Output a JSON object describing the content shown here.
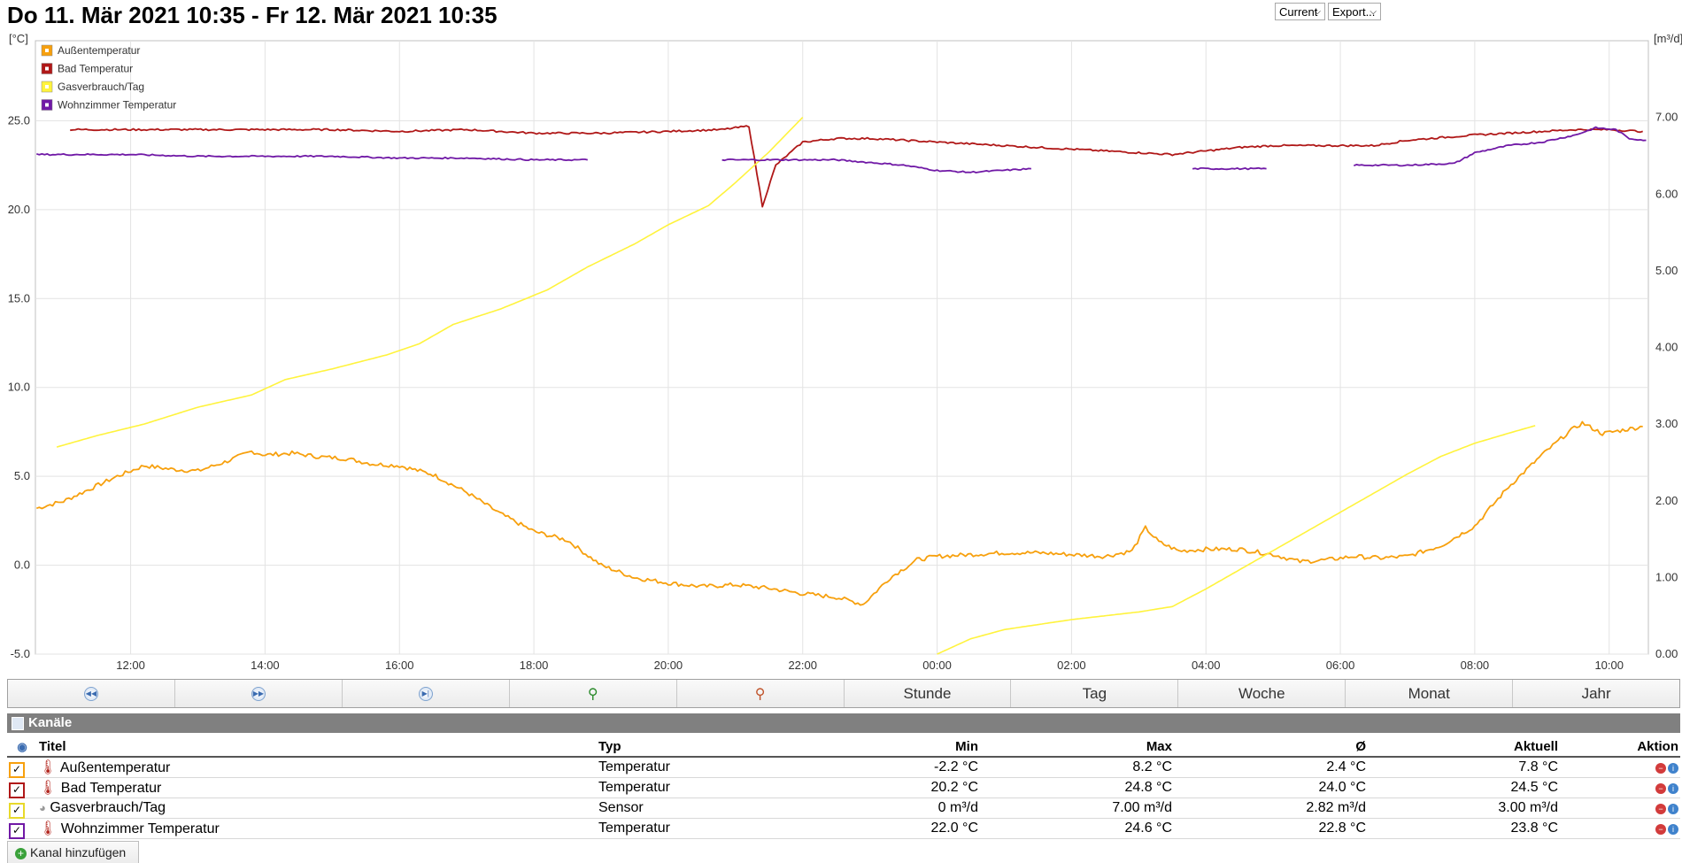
{
  "header": {
    "title": "Do 11. Mär 2021 10:35 - Fr 12. Mär 2021 10:35",
    "current_select": "Current",
    "export_select": "Export..."
  },
  "icons": {
    "nav_back": "rewind-icon",
    "nav_forward": "fast-forward-icon",
    "nav_end": "skip-end-icon",
    "zoom_in": "zoom-in-icon",
    "zoom_out": "zoom-out-icon",
    "channels": "list-icon",
    "visibility": "eye-icon",
    "temp_sensor": "thermometer-icon",
    "gas_sensor": "gauge-icon",
    "delete": "minus-circle-icon",
    "info": "info-icon",
    "add": "plus-circle-icon"
  },
  "nav": {
    "buttons": [
      "Stunde",
      "Tag",
      "Woche",
      "Monat",
      "Jahr"
    ]
  },
  "channels": {
    "title": "Kanäle",
    "columns": {
      "titel": "Titel",
      "typ": "Typ",
      "min": "Min",
      "max": "Max",
      "avg": "Ø",
      "aktuell": "Aktuell",
      "aktion": "Aktion"
    },
    "rows": [
      {
        "titel": "Außentemperatur",
        "typ": "Temperatur",
        "min": "-2.2 °C",
        "max": "8.2 °C",
        "avg": "2.4 °C",
        "aktuell": "7.8 °C",
        "color": "#f7a00d"
      },
      {
        "titel": "Bad Temperatur",
        "typ": "Temperatur",
        "min": "20.2 °C",
        "max": "24.8 °C",
        "avg": "24.0 °C",
        "aktuell": "24.5 °C",
        "color": "#b01818"
      },
      {
        "titel": "Gasverbrauch/Tag",
        "typ": "Sensor",
        "min": "0 m³/d",
        "max": "7.00 m³/d",
        "avg": "2.82 m³/d",
        "aktuell": "3.00 m³/d",
        "color": "#fff33d"
      },
      {
        "titel": "Wohnzimmer Temperatur",
        "typ": "Temperatur",
        "min": "22.0 °C",
        "max": "24.6 °C",
        "avg": "22.8 °C",
        "aktuell": "23.8 °C",
        "color": "#7019a6"
      }
    ],
    "add_button": "Kanal hinzufügen"
  },
  "chart_data": {
    "type": "line",
    "ylabel_left": "[°C]",
    "ylabel_right": "[m³/d]",
    "x_unit": "hours",
    "x_range": [
      10.583,
      34.583
    ],
    "x_ticks": [
      {
        "x": 12,
        "label": "12:00"
      },
      {
        "x": 14,
        "label": "14:00"
      },
      {
        "x": 16,
        "label": "16:00"
      },
      {
        "x": 18,
        "label": "18:00"
      },
      {
        "x": 20,
        "label": "20:00"
      },
      {
        "x": 22,
        "label": "22:00"
      },
      {
        "x": 24,
        "label": "00:00"
      },
      {
        "x": 26,
        "label": "02:00"
      },
      {
        "x": 28,
        "label": "04:00"
      },
      {
        "x": 30,
        "label": "06:00"
      },
      {
        "x": 32,
        "label": "08:00"
      },
      {
        "x": 34,
        "label": "10:00"
      }
    ],
    "ylim_left": [
      -5,
      29.5
    ],
    "yticks_left": [
      "-5.0",
      "0.0",
      "5.0",
      "10.0",
      "15.0",
      "20.0",
      "25.0"
    ],
    "ylim_right": [
      0,
      8
    ],
    "yticks_right": [
      "0.00",
      "1.00",
      "2.00",
      "3.00",
      "4.00",
      "5.00",
      "6.00",
      "7.00"
    ],
    "grid": true,
    "legend_position": "top-left",
    "series": [
      {
        "name": "Außentemperatur",
        "color": "#f7a00d",
        "axis": "left",
        "jitter": 0.12,
        "segments": [
          [
            [
              10.6,
              3.2
            ],
            [
              11.0,
              3.6
            ],
            [
              11.4,
              4.3
            ],
            [
              11.8,
              5.0
            ],
            [
              12.2,
              5.6
            ],
            [
              12.6,
              5.4
            ],
            [
              13.0,
              5.3
            ],
            [
              13.4,
              5.8
            ],
            [
              13.8,
              6.4
            ],
            [
              14.0,
              6.2
            ],
            [
              14.4,
              6.3
            ],
            [
              14.8,
              6.1
            ],
            [
              15.2,
              6.0
            ],
            [
              15.6,
              5.7
            ],
            [
              16.0,
              5.6
            ],
            [
              16.5,
              5.1
            ],
            [
              17.0,
              4.1
            ],
            [
              17.5,
              2.9
            ],
            [
              18.0,
              1.9
            ],
            [
              18.5,
              1.4
            ],
            [
              19.0,
              0.0
            ],
            [
              19.5,
              -0.7
            ],
            [
              20.0,
              -1.0
            ],
            [
              20.5,
              -1.2
            ],
            [
              21.0,
              -1.1
            ],
            [
              21.5,
              -1.3
            ],
            [
              22.0,
              -1.6
            ],
            [
              22.5,
              -1.8
            ],
            [
              22.9,
              -2.2
            ],
            [
              23.3,
              -0.7
            ],
            [
              23.7,
              0.3
            ],
            [
              24.0,
              0.5
            ],
            [
              24.5,
              0.6
            ],
            [
              25.0,
              0.7
            ],
            [
              25.5,
              0.7
            ],
            [
              26.0,
              0.6
            ],
            [
              26.5,
              0.5
            ],
            [
              26.9,
              0.8
            ],
            [
              27.1,
              2.1
            ],
            [
              27.3,
              1.3
            ],
            [
              27.6,
              0.8
            ],
            [
              28.0,
              0.9
            ],
            [
              28.5,
              0.9
            ],
            [
              29.0,
              0.6
            ],
            [
              29.4,
              0.2
            ],
            [
              29.8,
              0.3
            ],
            [
              30.2,
              0.5
            ],
            [
              30.6,
              0.4
            ],
            [
              31.0,
              0.5
            ],
            [
              31.5,
              1.1
            ],
            [
              32.0,
              2.2
            ],
            [
              32.5,
              4.4
            ],
            [
              33.0,
              6.2
            ],
            [
              33.4,
              7.5
            ],
            [
              33.6,
              8.0
            ],
            [
              33.9,
              7.4
            ],
            [
              34.2,
              7.6
            ],
            [
              34.5,
              7.8
            ]
          ]
        ]
      },
      {
        "name": "Bad Temperatur",
        "color": "#b01818",
        "axis": "left",
        "jitter": 0.05,
        "segments": [
          [
            [
              11.1,
              24.5
            ],
            [
              12.0,
              24.5
            ],
            [
              13.0,
              24.5
            ],
            [
              14.0,
              24.5
            ],
            [
              15.0,
              24.5
            ],
            [
              16.0,
              24.4
            ],
            [
              17.0,
              24.5
            ],
            [
              18.0,
              24.3
            ],
            [
              19.0,
              24.3
            ],
            [
              20.0,
              24.4
            ],
            [
              20.8,
              24.5
            ],
            [
              21.2,
              24.7
            ],
            [
              21.4,
              20.2
            ],
            [
              21.6,
              22.5
            ],
            [
              22.0,
              23.8
            ],
            [
              22.5,
              24.0
            ],
            [
              23.0,
              24.0
            ],
            [
              23.5,
              23.9
            ],
            [
              24.0,
              23.8
            ],
            [
              25.0,
              23.6
            ],
            [
              26.0,
              23.4
            ],
            [
              27.0,
              23.2
            ],
            [
              27.5,
              23.1
            ],
            [
              28.0,
              23.3
            ],
            [
              28.5,
              23.5
            ],
            [
              29.0,
              23.6
            ],
            [
              30.0,
              23.6
            ],
            [
              30.5,
              23.6
            ],
            [
              31.0,
              23.9
            ],
            [
              32.0,
              24.2
            ],
            [
              33.0,
              24.4
            ],
            [
              33.5,
              24.5
            ],
            [
              34.0,
              24.5
            ],
            [
              34.5,
              24.4
            ]
          ]
        ]
      },
      {
        "name": "Gasverbrauch/Tag",
        "color": "#fff33d",
        "axis": "right",
        "jitter": 0,
        "segments": [
          [
            [
              10.9,
              2.7
            ],
            [
              11.5,
              2.85
            ],
            [
              12.2,
              3.0
            ],
            [
              13.0,
              3.22
            ],
            [
              13.8,
              3.38
            ],
            [
              14.3,
              3.58
            ],
            [
              15.0,
              3.72
            ],
            [
              15.8,
              3.9
            ],
            [
              16.3,
              4.05
            ],
            [
              16.8,
              4.3
            ],
            [
              17.5,
              4.5
            ],
            [
              18.2,
              4.75
            ],
            [
              18.8,
              5.05
            ],
            [
              19.5,
              5.35
            ],
            [
              20.0,
              5.6
            ],
            [
              20.6,
              5.85
            ],
            [
              21.0,
              6.15
            ],
            [
              21.5,
              6.55
            ],
            [
              22.0,
              7.0
            ]
          ],
          [
            [
              24.0,
              0.0
            ],
            [
              24.5,
              0.2
            ],
            [
              25.0,
              0.32
            ],
            [
              26.0,
              0.45
            ],
            [
              27.0,
              0.55
            ],
            [
              27.5,
              0.62
            ],
            [
              28.0,
              0.85
            ],
            [
              28.5,
              1.1
            ],
            [
              29.0,
              1.35
            ],
            [
              29.5,
              1.6
            ],
            [
              30.0,
              1.85
            ],
            [
              30.5,
              2.1
            ],
            [
              31.0,
              2.35
            ],
            [
              31.5,
              2.58
            ],
            [
              32.0,
              2.75
            ],
            [
              32.5,
              2.88
            ],
            [
              32.9,
              2.98
            ]
          ]
        ]
      },
      {
        "name": "Wohnzimmer Temperatur",
        "color": "#7019a6",
        "axis": "left",
        "jitter": 0.04,
        "segments": [
          [
            [
              10.6,
              23.1
            ],
            [
              12.0,
              23.1
            ],
            [
              13.0,
              23.0
            ],
            [
              14.0,
              23.0
            ],
            [
              15.0,
              23.0
            ],
            [
              16.0,
              22.9
            ],
            [
              17.0,
              22.9
            ],
            [
              18.0,
              22.8
            ],
            [
              18.8,
              22.8
            ]
          ],
          [
            [
              20.8,
              22.8
            ],
            [
              22.5,
              22.8
            ],
            [
              23.5,
              22.5
            ],
            [
              24.0,
              22.2
            ],
            [
              24.5,
              22.1
            ],
            [
              25.4,
              22.3
            ]
          ],
          [
            [
              27.8,
              22.3
            ],
            [
              28.9,
              22.3
            ]
          ],
          [
            [
              30.2,
              22.5
            ],
            [
              31.0,
              22.5
            ],
            [
              31.7,
              22.6
            ],
            [
              32.0,
              23.2
            ],
            [
              32.5,
              23.6
            ],
            [
              33.0,
              23.8
            ],
            [
              33.5,
              24.2
            ],
            [
              33.8,
              24.6
            ],
            [
              34.1,
              24.5
            ],
            [
              34.3,
              24.0
            ],
            [
              34.55,
              23.9
            ]
          ]
        ]
      }
    ]
  }
}
